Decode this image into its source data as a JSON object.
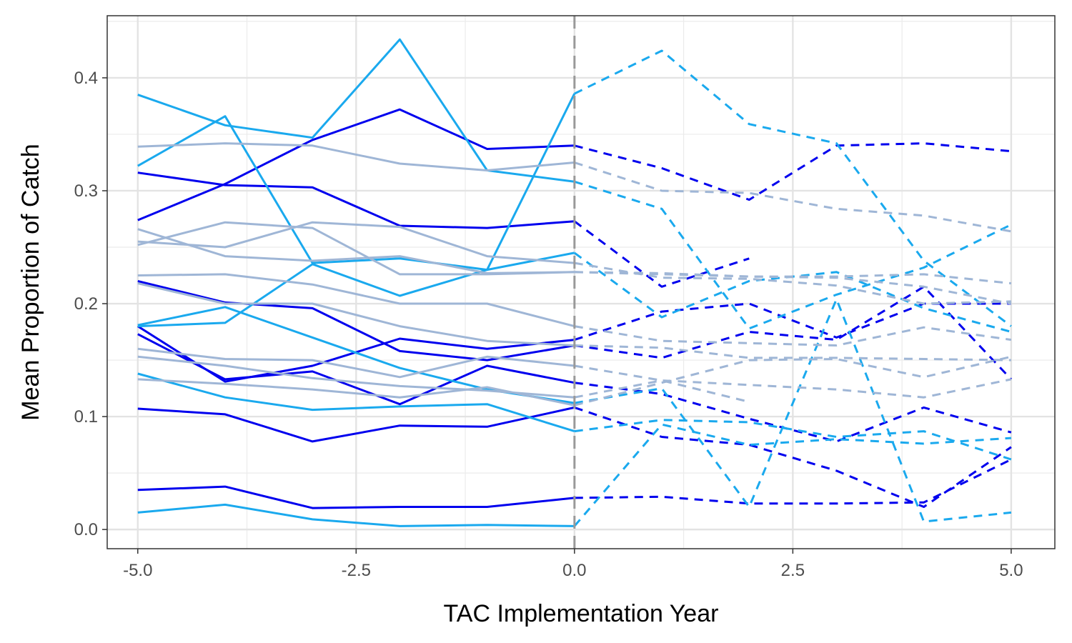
{
  "chart_data": {
    "type": "line",
    "title": "",
    "xlabel": "TAC Implementation Year",
    "ylabel": "Mean Proportion of Catch",
    "xlim": [
      -5.35,
      5.5
    ],
    "ylim": [
      -0.017,
      0.455
    ],
    "x_ticks": [
      -5.0,
      -2.5,
      0.0,
      2.5,
      5.0
    ],
    "x_tick_labels": [
      "-5.0",
      "-2.5",
      "0.0",
      "2.5",
      "5.0"
    ],
    "y_ticks": [
      0.0,
      0.1,
      0.2,
      0.3,
      0.4
    ],
    "y_tick_labels": [
      "0.0",
      "0.1",
      "0.2",
      "0.3",
      "0.4"
    ],
    "grid": true,
    "legend": "none",
    "reference_line": {
      "x": 0,
      "style": "dashed",
      "color": "#999999"
    },
    "colors": {
      "dark_blue": "#0000ee",
      "light_blue": "#1aa9ee",
      "grey_blue": "#9fb6d6"
    },
    "series": [
      {
        "color": "dark_blue",
        "x": [
          -5,
          -4,
          -3,
          -2,
          -1,
          0,
          1,
          2,
          3,
          4,
          5
        ],
        "values": [
          0.274,
          0.306,
          0.345,
          0.372,
          0.337,
          0.34,
          0.32,
          0.292,
          0.34,
          0.342,
          0.335
        ]
      },
      {
        "color": "dark_blue",
        "x": [
          -5,
          -4,
          -3,
          -2,
          -1,
          0,
          1,
          2
        ],
        "values": [
          0.316,
          0.305,
          0.303,
          0.269,
          0.267,
          0.273,
          0.215,
          0.24
        ]
      },
      {
        "color": "dark_blue",
        "x": [
          -5,
          -4,
          -3,
          -2,
          -1,
          0,
          1,
          2,
          3,
          4,
          5
        ],
        "values": [
          0.22,
          0.201,
          0.196,
          0.158,
          0.15,
          0.163,
          0.152,
          0.175,
          0.168,
          0.215,
          0.133
        ]
      },
      {
        "color": "dark_blue",
        "x": [
          -5,
          -4,
          -3,
          -2,
          -1,
          0,
          1,
          2,
          3,
          4,
          5
        ],
        "values": [
          0.18,
          0.131,
          0.145,
          0.169,
          0.16,
          0.168,
          0.193,
          0.2,
          0.17,
          0.2,
          0.2
        ]
      },
      {
        "color": "dark_blue",
        "x": [
          -5,
          -4,
          -3,
          -2,
          -1,
          0,
          1,
          2,
          3,
          4,
          5
        ],
        "values": [
          0.173,
          0.133,
          0.14,
          0.111,
          0.145,
          0.13,
          0.12,
          0.098,
          0.078,
          0.108,
          0.086
        ]
      },
      {
        "color": "dark_blue",
        "x": [
          -5,
          -4,
          -3,
          -2,
          -1,
          0,
          1,
          2,
          3,
          4,
          5
        ],
        "values": [
          0.107,
          0.102,
          0.078,
          0.092,
          0.091,
          0.108,
          0.082,
          0.075,
          0.052,
          0.02,
          0.073
        ]
      },
      {
        "color": "dark_blue",
        "x": [
          -5,
          -4,
          -3,
          -2,
          -1,
          0,
          1,
          2,
          3,
          4,
          5
        ],
        "values": [
          0.035,
          0.038,
          0.019,
          0.02,
          0.02,
          0.028,
          0.029,
          0.023,
          0.023,
          0.024,
          0.062
        ]
      },
      {
        "color": "light_blue",
        "x": [
          -5,
          -4,
          -3,
          -2,
          -1,
          0,
          1,
          2,
          3,
          4,
          5
        ],
        "values": [
          0.322,
          0.366,
          0.236,
          0.24,
          0.23,
          0.245,
          0.188,
          0.22,
          0.228,
          0.196,
          0.175
        ]
      },
      {
        "color": "light_blue",
        "x": [
          -5,
          -4,
          -3,
          -2,
          -1,
          0,
          1,
          2,
          3,
          4,
          5
        ],
        "values": [
          0.385,
          0.358,
          0.347,
          0.434,
          0.318,
          0.308,
          0.284,
          0.178,
          0.208,
          0.232,
          0.27
        ]
      },
      {
        "color": "light_blue",
        "x": [
          -5,
          -4,
          -3,
          -2,
          -1,
          0,
          1,
          2,
          3,
          4,
          5
        ],
        "values": [
          0.18,
          0.183,
          0.235,
          0.207,
          0.23,
          0.386,
          0.424,
          0.359,
          0.342,
          0.238,
          0.18
        ]
      },
      {
        "color": "light_blue",
        "x": [
          -5,
          -4,
          -3,
          -2,
          -1,
          0,
          1,
          2,
          3,
          4,
          5
        ],
        "values": [
          0.181,
          0.197,
          0.17,
          0.143,
          0.124,
          0.112,
          0.125,
          0.02,
          0.204,
          0.007,
          0.015
        ]
      },
      {
        "color": "light_blue",
        "x": [
          -5,
          -4,
          -3,
          -2,
          -1,
          0,
          1,
          2,
          3,
          4,
          5
        ],
        "values": [
          0.138,
          0.117,
          0.106,
          0.109,
          0.111,
          0.087,
          0.097,
          0.095,
          0.082,
          0.087,
          0.062
        ]
      },
      {
        "color": "light_blue",
        "x": [
          -5,
          -4,
          -3,
          -2,
          -1,
          0,
          1,
          2,
          3,
          4,
          5
        ],
        "values": [
          0.015,
          0.022,
          0.009,
          0.003,
          0.004,
          0.003,
          0.093,
          0.075,
          0.08,
          0.076,
          0.081
        ]
      },
      {
        "color": "grey_blue",
        "x": [
          -5,
          -4,
          -3,
          -2,
          -1,
          0,
          1,
          2,
          3,
          4,
          5
        ],
        "values": [
          0.339,
          0.342,
          0.34,
          0.324,
          0.318,
          0.325,
          0.3,
          0.298,
          0.284,
          0.278,
          0.264
        ]
      },
      {
        "color": "grey_blue",
        "x": [
          -5,
          -4,
          -3,
          -2,
          -1,
          0,
          1,
          2,
          3,
          4,
          5
        ],
        "values": [
          0.266,
          0.242,
          0.238,
          0.242,
          0.227,
          0.228,
          0.226,
          0.224,
          0.224,
          0.226,
          0.218
        ]
      },
      {
        "color": "grey_blue",
        "x": [
          -5,
          -4,
          -3,
          -2,
          -1,
          0,
          1,
          2,
          3,
          4,
          5
        ],
        "values": [
          0.252,
          0.272,
          0.267,
          0.226,
          0.226,
          0.228,
          0.227,
          0.224,
          0.223,
          0.215,
          0.2
        ]
      },
      {
        "color": "grey_blue",
        "x": [
          -5,
          -4,
          -3,
          -2,
          -1,
          0,
          1,
          2,
          3,
          4,
          5
        ],
        "values": [
          0.255,
          0.25,
          0.272,
          0.268,
          0.242,
          0.236,
          0.223,
          0.222,
          0.216,
          0.2,
          0.202
        ]
      },
      {
        "color": "grey_blue",
        "x": [
          -5,
          -4,
          -3,
          -2,
          -1,
          0,
          1,
          2,
          3,
          4,
          5
        ],
        "values": [
          0.225,
          0.226,
          0.217,
          0.2,
          0.2,
          0.18,
          0.167,
          0.165,
          0.163,
          0.179,
          0.168
        ]
      },
      {
        "color": "grey_blue",
        "x": [
          -5,
          -4,
          -3,
          -2,
          -1,
          0,
          1,
          2,
          3,
          4,
          5
        ],
        "values": [
          0.218,
          0.2,
          0.2,
          0.18,
          0.167,
          0.163,
          0.161,
          0.152,
          0.152,
          0.151,
          0.15
        ]
      },
      {
        "color": "grey_blue",
        "x": [
          -5,
          -4,
          -3,
          -2,
          -1,
          0,
          1,
          2
        ],
        "values": [
          0.16,
          0.151,
          0.15,
          0.135,
          0.153,
          0.145,
          0.132,
          0.113
        ]
      },
      {
        "color": "grey_blue",
        "x": [
          -5,
          -4,
          -3,
          -2,
          -1,
          0,
          1,
          2,
          3,
          4,
          5
        ],
        "values": [
          0.153,
          0.145,
          0.134,
          0.127,
          0.123,
          0.117,
          0.132,
          0.128,
          0.124,
          0.117,
          0.133
        ]
      },
      {
        "color": "grey_blue",
        "x": [
          -5,
          -4,
          -3,
          -2,
          -1,
          0,
          1,
          2,
          3,
          4,
          5
        ],
        "values": [
          0.133,
          0.129,
          0.124,
          0.117,
          0.126,
          0.11,
          0.13,
          0.15,
          0.151,
          0.135,
          0.153
        ]
      }
    ]
  }
}
